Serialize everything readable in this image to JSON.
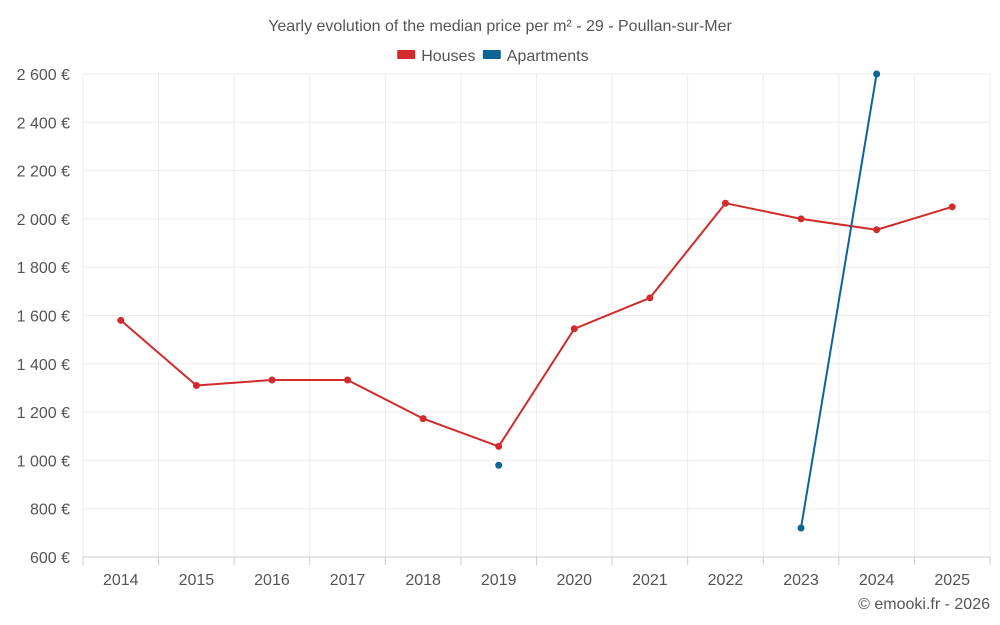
{
  "chart_data": {
    "type": "line",
    "title": "Yearly evolution of the median price per m² - 29 - Poullan-sur-Mer",
    "xlabel": "",
    "ylabel": "",
    "categories": [
      "2014",
      "2015",
      "2016",
      "2017",
      "2018",
      "2019",
      "2020",
      "2021",
      "2022",
      "2023",
      "2024",
      "2025"
    ],
    "ylim": [
      600,
      2600
    ],
    "yticks": [
      600,
      800,
      1000,
      1200,
      1400,
      1600,
      1800,
      2000,
      2200,
      2400,
      2600
    ],
    "ytick_labels": [
      "600 €",
      "800 €",
      "1 000 €",
      "1 200 €",
      "1 400 €",
      "1 600 €",
      "1 800 €",
      "2 000 €",
      "2 200 €",
      "2 400 €",
      "2 600 €"
    ],
    "grid": true,
    "legend_position": "top-center",
    "series": [
      {
        "name": "Houses",
        "color": "#d12b2b",
        "values": [
          1580,
          1310,
          1333,
          1333,
          1173,
          1058,
          1545,
          1673,
          2065,
          2000,
          1955,
          2050
        ]
      },
      {
        "name": "Apartments",
        "color": "#0b6596",
        "values": [
          null,
          null,
          null,
          null,
          null,
          980,
          null,
          null,
          null,
          720,
          2600,
          null
        ]
      }
    ]
  },
  "credit": "© emooki.fr - 2026"
}
